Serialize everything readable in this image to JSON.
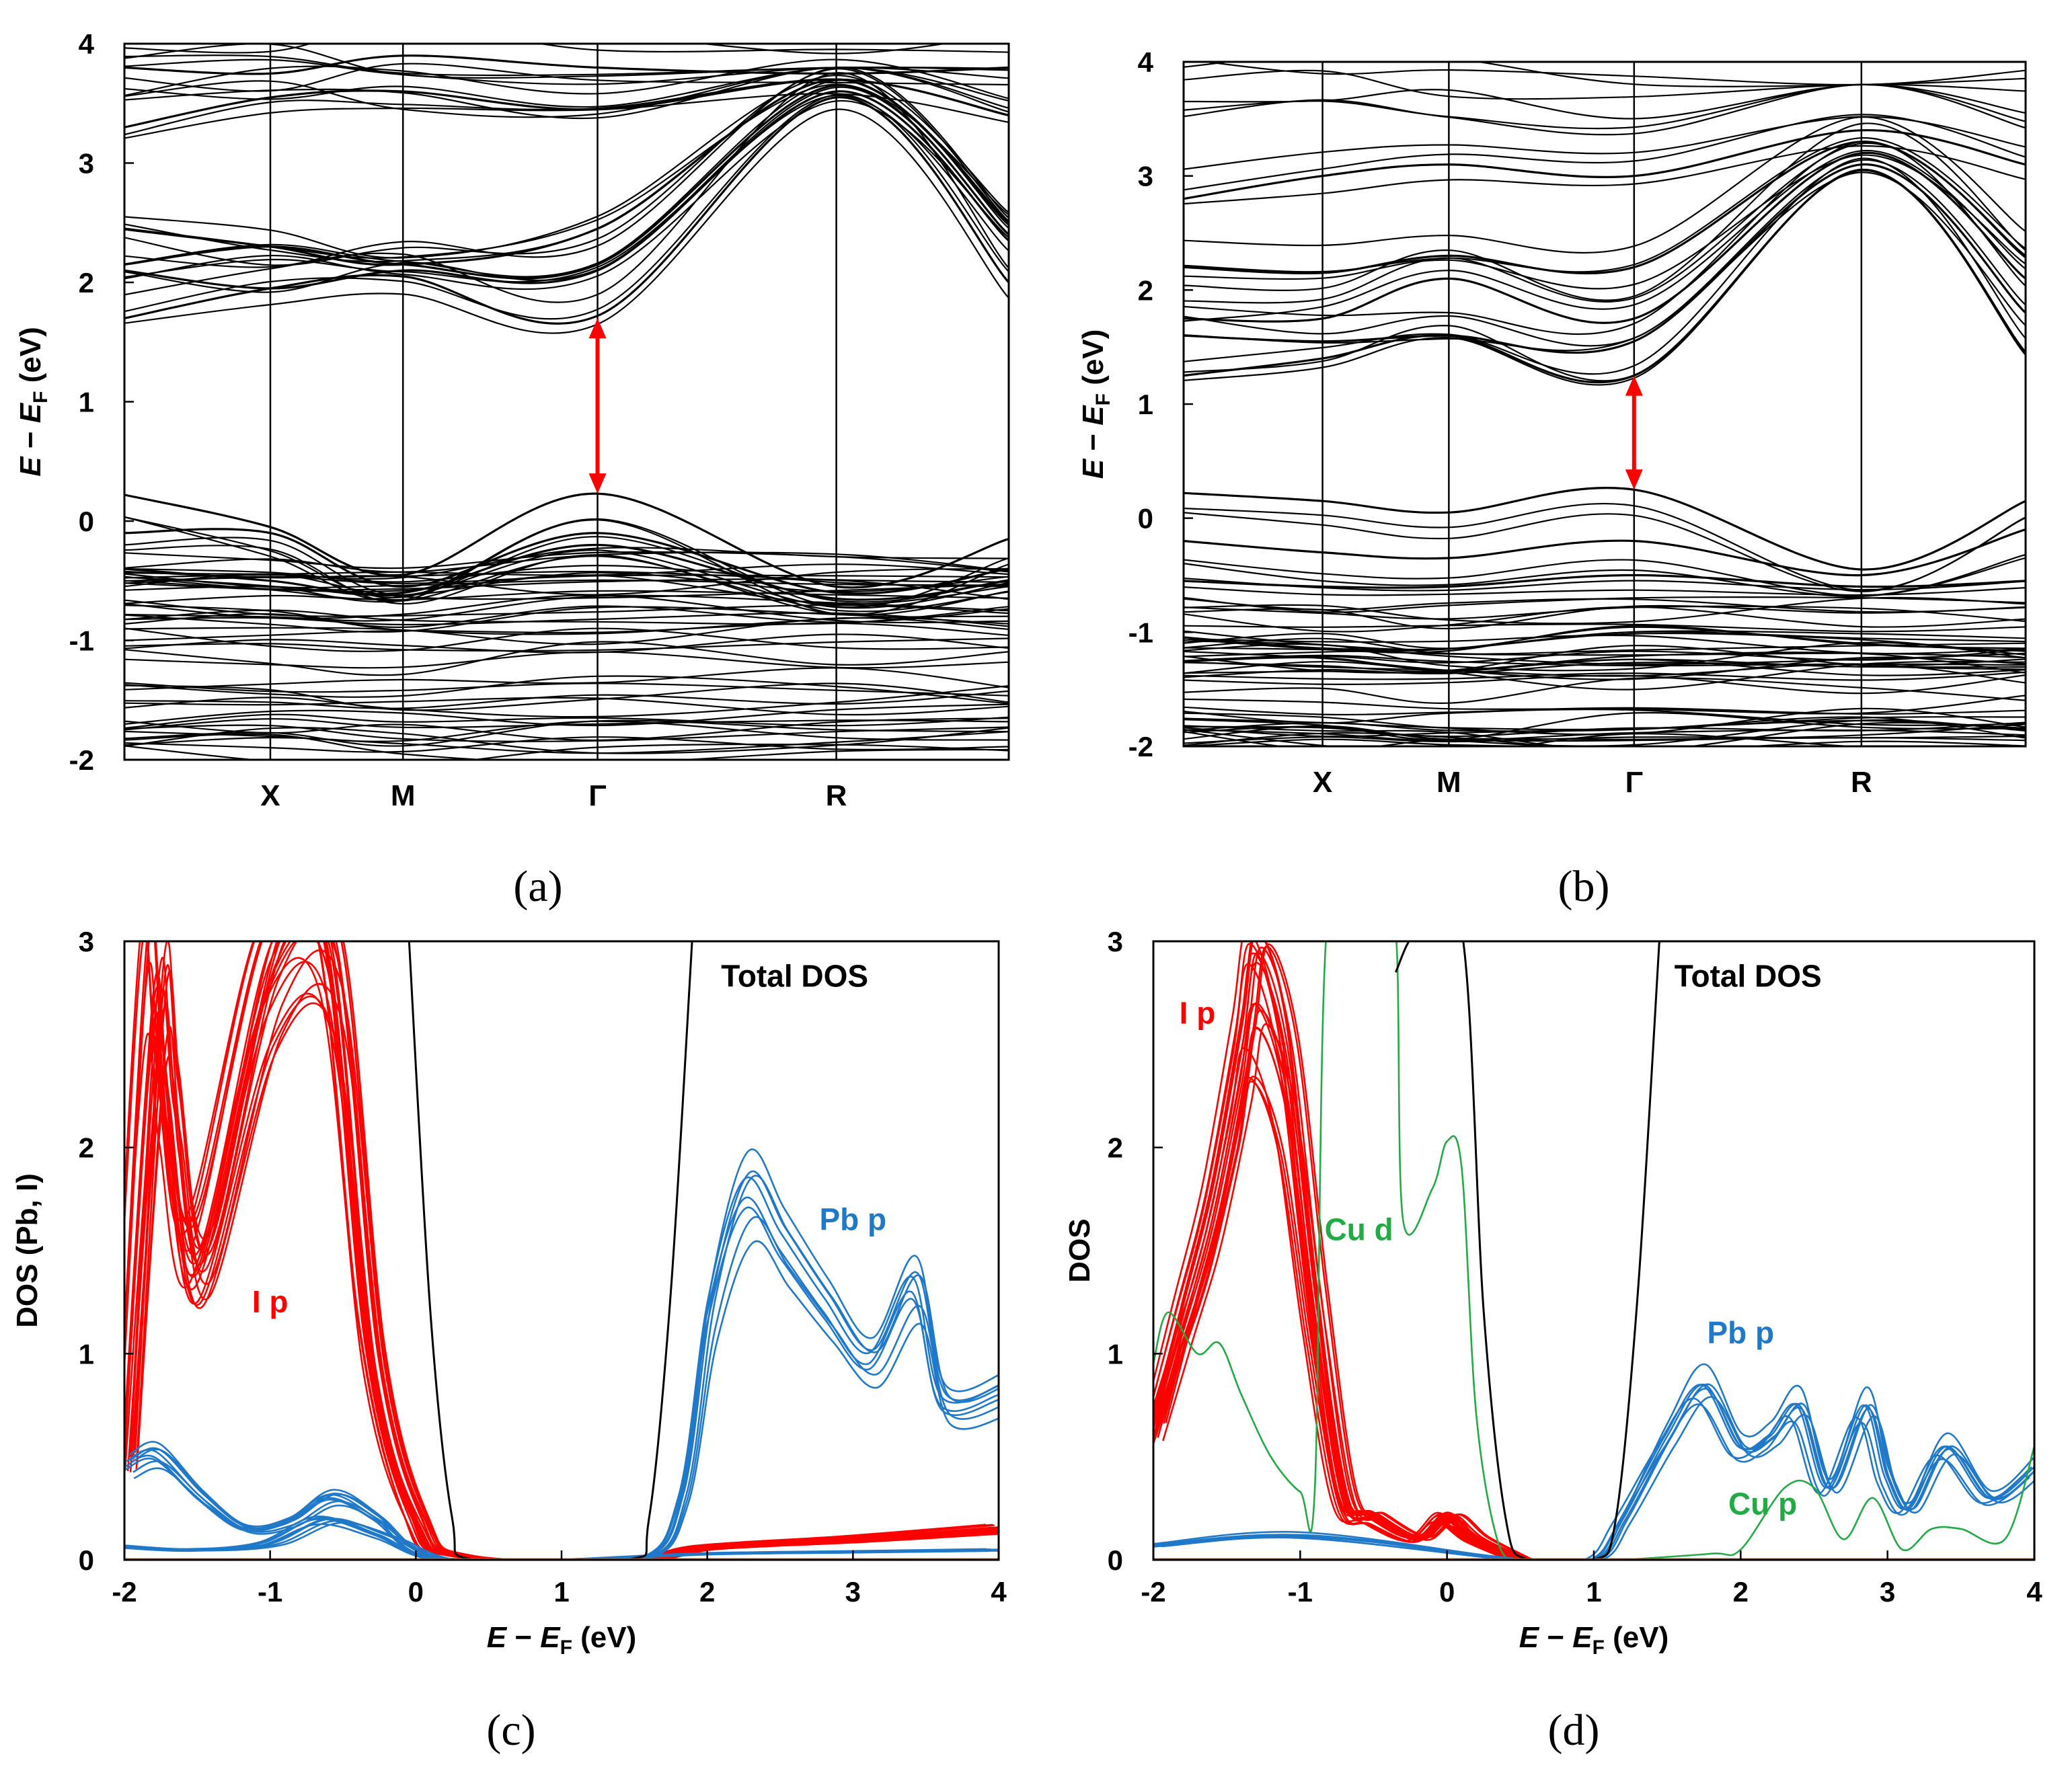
{
  "colors": {
    "band": "#000000",
    "gap_arrow": "#ff0000",
    "I_p": "#ff0000",
    "Pb_p": "#1f78c8",
    "Cu_d": "#22aa44",
    "total": "#000000",
    "cu_p": "#22aa44",
    "minor": "#c07020"
  },
  "chart_data": [
    {
      "id": "a",
      "type": "line",
      "panel_label": "(a)",
      "ylabel_parts": [
        "E",
        " − ",
        "E",
        "F",
        " (eV)"
      ],
      "ylim": [
        -2,
        4
      ],
      "y_ticks": [
        "-2",
        "-1",
        "0",
        "1",
        "2",
        "3",
        "4"
      ],
      "k_points": [
        {
          "label": "X",
          "k": 0.165
        },
        {
          "label": "M",
          "k": 0.315
        },
        {
          "label": "Γ",
          "k": 0.535
        },
        {
          "label": "R",
          "k": 0.805
        }
      ],
      "gap_arrow": {
        "k": 0.535,
        "from": 0.23,
        "to": 1.7
      },
      "vbm": 0.23,
      "cbm": 1.7,
      "series": [
        {
          "name": "conduction",
          "values_at_k": [
            [
              1.7,
              1.95,
              2.05,
              1.72,
              3.55,
              2.0
            ],
            [
              2.1,
              1.95,
              2.1,
              2.1,
              3.6,
              2.35
            ],
            [
              2.15,
              2.3,
              2.15,
              2.15,
              3.65,
              2.4
            ],
            [
              2.45,
              2.3,
              2.15,
              2.45,
              3.7,
              2.5
            ],
            [
              3.3,
              3.55,
              3.6,
              3.45,
              3.7,
              3.4
            ],
            [
              3.8,
              3.75,
              3.9,
              3.8,
              3.75,
              3.8
            ]
          ]
        },
        {
          "name": "valence",
          "values_at_k": [
            [
              0.22,
              -0.05,
              -0.45,
              0.23,
              -0.55,
              -0.15
            ],
            [
              -0.1,
              -0.1,
              -0.55,
              -0.1,
              -0.6,
              -0.4
            ],
            [
              -0.4,
              -0.5,
              -0.6,
              -0.2,
              -0.65,
              -0.5
            ]
          ]
        }
      ]
    },
    {
      "id": "b",
      "type": "line",
      "panel_label": "(b)",
      "ylabel_parts": [
        "E",
        " − ",
        "E",
        "F",
        " (eV)"
      ],
      "ylim": [
        -2,
        4
      ],
      "y_ticks": [
        "-2",
        "-1",
        "0",
        "1",
        "2",
        "3",
        "4"
      ],
      "k_points": [
        {
          "label": "X",
          "k": 0.165
        },
        {
          "label": "M",
          "k": 0.315
        },
        {
          "label": "Γ",
          "k": 0.535
        },
        {
          "label": "R",
          "k": 0.805
        }
      ],
      "gap_arrow": {
        "k": 0.535,
        "from": 0.25,
        "to": 1.25
      },
      "vbm": 0.25,
      "cbm": 1.25,
      "series": [
        {
          "name": "conduction",
          "values_at_k": [
            [
              1.25,
              1.4,
              1.6,
              1.25,
              3.05,
              1.45
            ],
            [
              1.6,
              1.55,
              1.6,
              1.55,
              3.1,
              1.8
            ],
            [
              1.75,
              1.75,
              2.1,
              1.75,
              3.2,
              2.1
            ],
            [
              2.2,
              2.15,
              2.3,
              2.2,
              3.3,
              2.3
            ],
            [
              2.8,
              3.0,
              3.1,
              3.0,
              3.4,
              3.1
            ]
          ]
        },
        {
          "name": "valence",
          "values_at_k": [
            [
              0.22,
              0.15,
              0.05,
              0.25,
              -0.45,
              0.15
            ],
            [
              -0.2,
              -0.3,
              -0.35,
              -0.2,
              -0.5,
              -0.1
            ],
            [
              -0.55,
              -0.6,
              -0.6,
              -0.5,
              -0.6,
              -0.55
            ]
          ]
        }
      ]
    },
    {
      "id": "c",
      "type": "line",
      "panel_label": "(c)",
      "xlabel_parts": [
        "E",
        " − ",
        "E",
        "F",
        " (eV)"
      ],
      "ylabel": "DOS (Pb, I)",
      "xlim": [
        -2,
        4
      ],
      "ylim": [
        0,
        3
      ],
      "x_ticks": [
        "-2",
        "-1",
        "0",
        "1",
        "2",
        "3",
        "4"
      ],
      "y_ticks": [
        "0",
        "1",
        "2",
        "3"
      ],
      "annotations": [
        {
          "text": "Total DOS",
          "x": 2.6,
          "y": 2.78,
          "color": "total"
        },
        {
          "text": "Pb p",
          "x": 3.0,
          "y": 1.6,
          "color": "Pb_p"
        },
        {
          "text": "I p",
          "x": -1.0,
          "y": 1.2,
          "color": "I_p"
        }
      ],
      "series": [
        {
          "name": "I p",
          "color": "I_p",
          "x": [
            -2,
            -1.8,
            -1.7,
            -1.5,
            -1.0,
            -0.6,
            -0.3,
            0.0,
            0.3,
            1.5,
            2.0,
            3.0,
            4.0
          ],
          "y": [
            0.5,
            2.7,
            2.2,
            1.45,
            2.9,
            3.0,
            1.0,
            0.2,
            0.02,
            0.0,
            0.06,
            0.1,
            0.15
          ]
        },
        {
          "name": "Pb p",
          "color": "Pb_p",
          "x": [
            -2,
            -1.8,
            -1.5,
            -1.2,
            -0.9,
            -0.6,
            -0.3,
            0.0,
            0.5,
            1.5,
            1.8,
            2.0,
            2.25,
            2.5,
            2.8,
            3.1,
            3.4,
            3.6,
            4.0
          ],
          "y": [
            0.45,
            0.5,
            0.3,
            0.15,
            0.18,
            0.3,
            0.2,
            0.03,
            0.0,
            0.0,
            0.3,
            1.2,
            1.75,
            1.5,
            1.2,
            0.95,
            1.3,
            0.75,
            0.8
          ]
        },
        {
          "name": "Pb p (low)",
          "color": "Pb_p",
          "x": [
            -2,
            -1.5,
            -1.0,
            -0.6,
            -0.2,
            0.2,
            1.0,
            2.0,
            3.0,
            4.0
          ],
          "y": [
            0.07,
            0.05,
            0.08,
            0.2,
            0.12,
            0.0,
            0.0,
            0.03,
            0.04,
            0.05
          ]
        },
        {
          "name": "Total DOS",
          "color": "total",
          "x": [
            -0.05,
            0.1,
            0.25,
            0.4,
            1.45,
            1.6,
            1.75,
            1.9
          ],
          "y": [
            3.05,
            1.2,
            0.2,
            0.0,
            0.0,
            0.2,
            1.3,
            3.05
          ]
        }
      ]
    },
    {
      "id": "d",
      "type": "line",
      "panel_label": "(d)",
      "xlabel_parts": [
        "E",
        " − ",
        "E",
        "F",
        " (eV)"
      ],
      "ylabel": "DOS",
      "xlim": [
        -2,
        4
      ],
      "ylim": [
        0,
        3
      ],
      "x_ticks": [
        "-2",
        "-1",
        "0",
        "1",
        "2",
        "3",
        "4"
      ],
      "y_ticks": [
        "0",
        "1",
        "2",
        "3"
      ],
      "annotations": [
        {
          "text": "Total DOS",
          "x": 2.05,
          "y": 2.78,
          "color": "total"
        },
        {
          "text": "I p",
          "x": -1.7,
          "y": 2.6,
          "color": "I_p"
        },
        {
          "text": "Cu d",
          "x": -0.6,
          "y": 1.55,
          "color": "Cu_d"
        },
        {
          "text": "Pb p",
          "x": 2.0,
          "y": 1.05,
          "color": "Pb_p"
        },
        {
          "text": "Cu p",
          "x": 2.15,
          "y": 0.22,
          "color": "cu_p"
        }
      ],
      "series": [
        {
          "name": "I p",
          "color": "I_p",
          "x": [
            -2,
            -1.8,
            -1.6,
            -1.4,
            -1.3,
            -1.1,
            -0.9,
            -0.7,
            -0.5,
            -0.2,
            0.0,
            0.2,
            0.5
          ],
          "y": [
            0.6,
            1.1,
            1.6,
            2.3,
            2.7,
            2.3,
            1.2,
            0.3,
            0.2,
            0.1,
            0.2,
            0.1,
            0.0
          ]
        },
        {
          "name": "Cu d",
          "color": "Cu_d",
          "x": [
            -2,
            -1.9,
            -1.7,
            -1.55,
            -1.4,
            -1.2,
            -1.0,
            -0.9,
            -0.82,
            -0.6,
            -0.5,
            -0.35,
            -0.3,
            -0.1,
            0.0,
            0.1,
            0.2,
            0.35,
            0.5
          ],
          "y": [
            0.95,
            1.2,
            1.0,
            1.05,
            0.8,
            0.5,
            0.33,
            0.35,
            3.05,
            3.05,
            3.05,
            3.05,
            1.65,
            1.8,
            2.03,
            1.9,
            0.7,
            0.08,
            0.0
          ]
        },
        {
          "name": "Pb p",
          "color": "Pb_p",
          "x": [
            -2,
            -1.0,
            0.5,
            1.0,
            1.2,
            1.5,
            1.75,
            2.0,
            2.2,
            2.4,
            2.6,
            2.85,
            3.0,
            3.15,
            3.4,
            3.7,
            4.0
          ],
          "y": [
            0.07,
            0.12,
            0.0,
            0.0,
            0.2,
            0.6,
            0.85,
            0.55,
            0.6,
            0.75,
            0.35,
            0.75,
            0.4,
            0.25,
            0.55,
            0.3,
            0.45
          ]
        },
        {
          "name": "Cu p",
          "color": "cu_p",
          "x": [
            1.2,
            1.8,
            2.0,
            2.3,
            2.5,
            2.7,
            2.9,
            3.1,
            3.3,
            3.5,
            3.8,
            4.0
          ],
          "y": [
            0.0,
            0.03,
            0.05,
            0.35,
            0.35,
            0.1,
            0.3,
            0.05,
            0.15,
            0.15,
            0.1,
            0.55
          ]
        },
        {
          "name": "Total DOS",
          "color": "total",
          "x": [
            -0.35,
            -0.2,
            0.1,
            0.25,
            0.4,
            0.55,
            1.0,
            1.15,
            1.3,
            1.45
          ],
          "y": [
            2.85,
            3.05,
            3.05,
            1.2,
            0.2,
            0.0,
            0.0,
            0.2,
            1.3,
            3.05
          ]
        }
      ]
    }
  ]
}
